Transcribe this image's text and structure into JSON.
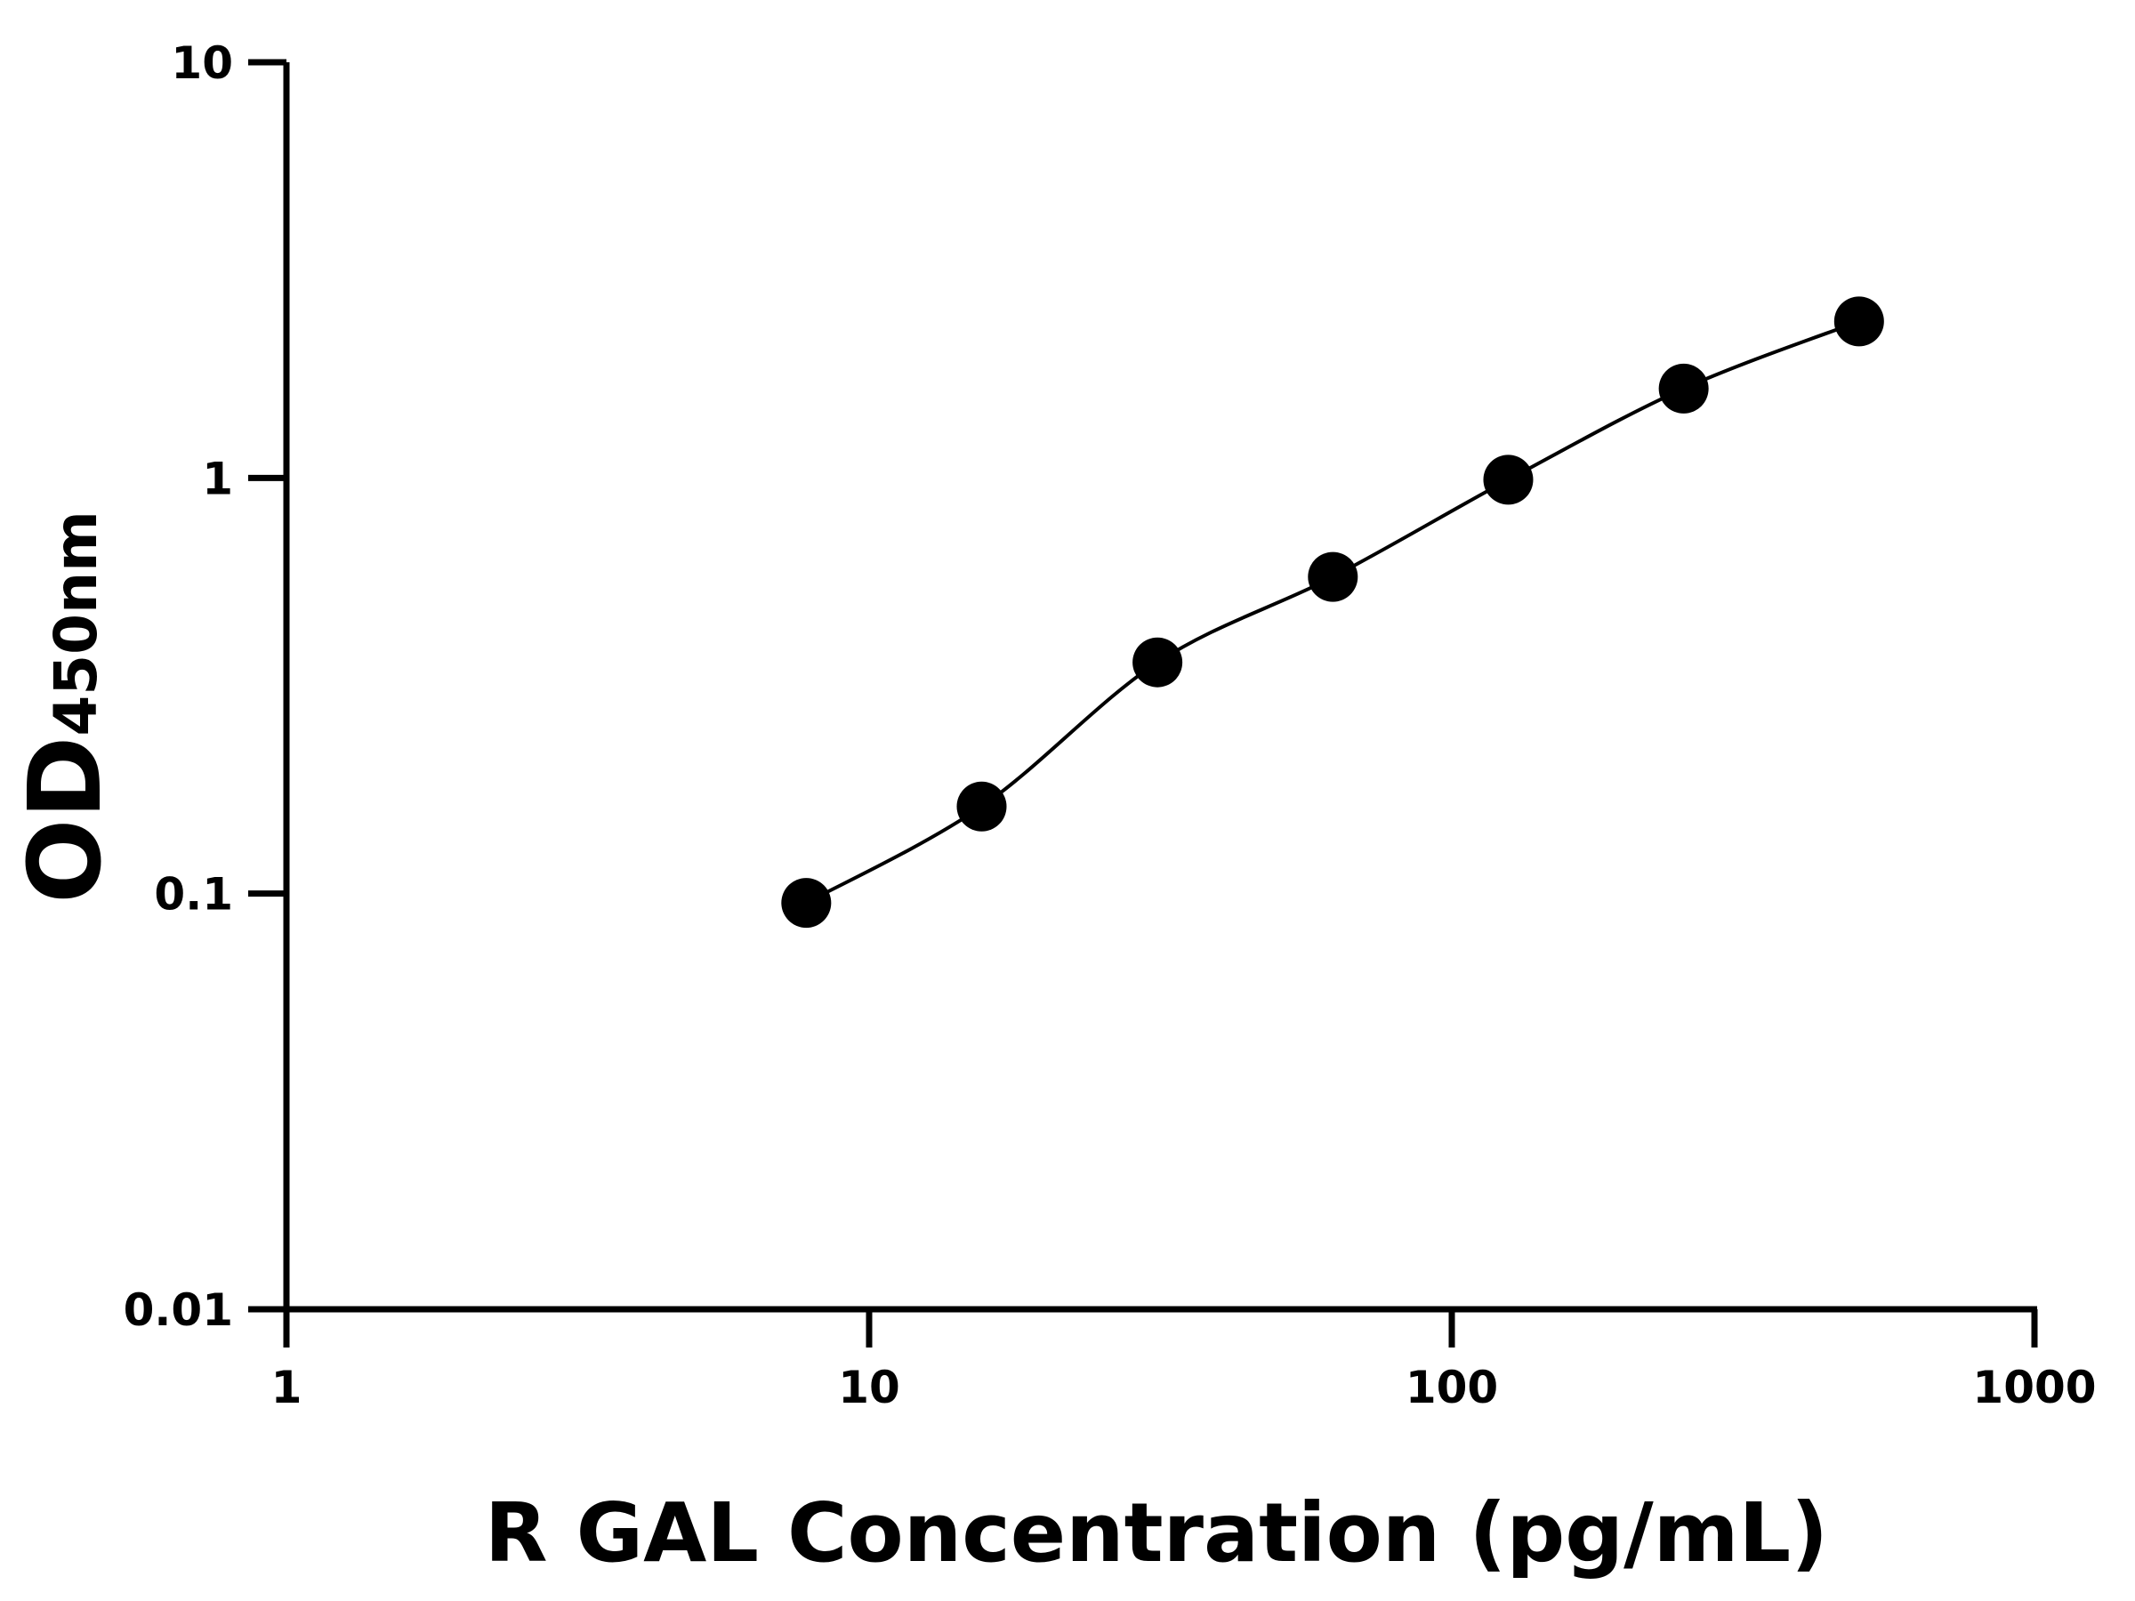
{
  "chart_data": {
    "type": "scatter",
    "title": "",
    "xlabel": "R GAL Concentration (pg/mL)",
    "ylabel_main": "OD",
    "ylabel_sub": "450nm",
    "x_scale": "log",
    "y_scale": "log",
    "xlim": [
      1,
      1000
    ],
    "ylim": [
      0.01,
      10
    ],
    "x_ticks": [
      "1",
      "10",
      "100",
      "1000"
    ],
    "x_tick_values": [
      1,
      10,
      100,
      1000
    ],
    "y_ticks": [
      "0.01",
      "0.1",
      "1",
      "10"
    ],
    "y_tick_values": [
      0.01,
      0.1,
      1,
      10
    ],
    "grid": false,
    "legend": "none",
    "series": [
      {
        "x": [
          7.8,
          15.6,
          31.25,
          62.5,
          125,
          250,
          500
        ],
        "y": [
          0.095,
          0.162,
          0.36,
          0.578,
          0.99,
          1.64,
          2.38
        ],
        "marker": "filled-circle",
        "fit_line": true,
        "color": "#000000"
      }
    ]
  }
}
